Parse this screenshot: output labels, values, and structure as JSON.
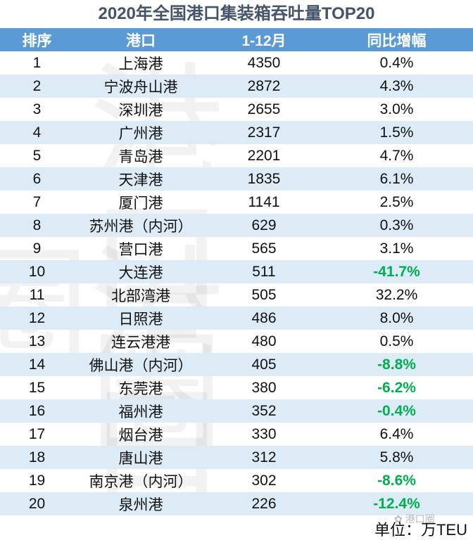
{
  "title": "2020年全国港口集装箱吞吐量TOP20",
  "watermark": "港口圈",
  "unit": "单位：万TEU",
  "colors": {
    "header": "#5b9bd5",
    "stripe": "#ddebf7",
    "negative": "#00b050",
    "title": "#44546a"
  },
  "chart_data": {
    "type": "table",
    "title": "2020年全国港口集装箱吞吐量TOP20",
    "columns": [
      "排序",
      "港口",
      "1-12月",
      "同比增幅"
    ],
    "rows": [
      [
        "1",
        "上海港",
        "4350",
        "0.4%"
      ],
      [
        "2",
        "宁波舟山港",
        "2872",
        "4.3%"
      ],
      [
        "3",
        "深圳港",
        "2655",
        "3.0%"
      ],
      [
        "4",
        "广州港",
        "2317",
        "1.5%"
      ],
      [
        "5",
        "青岛港",
        "2201",
        "4.7%"
      ],
      [
        "6",
        "天津港",
        "1835",
        "6.1%"
      ],
      [
        "7",
        "厦门港",
        "1141",
        "2.5%"
      ],
      [
        "8",
        "苏州港（内河）",
        "629",
        "0.3%"
      ],
      [
        "9",
        "营口港",
        "565",
        "3.1%"
      ],
      [
        "10",
        "大连港",
        "511",
        "-41.7%"
      ],
      [
        "11",
        "北部湾港",
        "505",
        "32.2%"
      ],
      [
        "12",
        "日照港",
        "486",
        "8.0%"
      ],
      [
        "13",
        "连云港港",
        "480",
        "0.5%"
      ],
      [
        "14",
        "佛山港（内河）",
        "405",
        "-8.8%"
      ],
      [
        "15",
        "东莞港",
        "380",
        "-6.2%"
      ],
      [
        "16",
        "福州港",
        "352",
        "-0.4%"
      ],
      [
        "17",
        "烟台港",
        "330",
        "6.4%"
      ],
      [
        "18",
        "唐山港",
        "312",
        "5.8%"
      ],
      [
        "19",
        "南京港（内河）",
        "302",
        "-8.6%"
      ],
      [
        "20",
        "泉州港",
        "226",
        "-12.4%"
      ]
    ],
    "unit": "单位：万TEU"
  }
}
